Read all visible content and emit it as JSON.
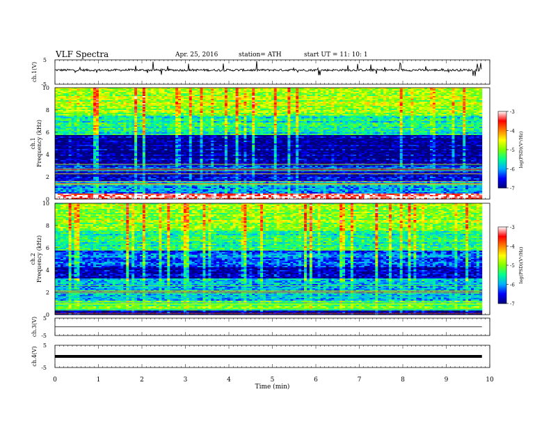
{
  "header": {
    "title": "VLF  Spectra",
    "date": "Apr. 25, 2016",
    "station": "station= ATH",
    "start": "start  UT  =    11: 10: 1"
  },
  "chart_data": [
    {
      "type": "line",
      "panel": "ch1",
      "ylabel": "ch.1(V)",
      "yticks": [
        "5",
        "-5"
      ],
      "ylim": [
        -5,
        5
      ],
      "note": "broadband waveform trace near ~1 V with spikes",
      "series": [
        {
          "level": 0.8,
          "color": "#000000"
        }
      ]
    },
    {
      "type": "heatmap",
      "panel": "ch1-spectrogram",
      "ylabel_top": "ch.1",
      "ylabel": "Frequency  (kHz)",
      "yticks": [
        "0",
        "2",
        "4",
        "6",
        "8",
        "10"
      ],
      "ylim": [
        0,
        10
      ],
      "colorbar": {
        "label": "log(PSD)(V²/Hz)",
        "ticks": [
          "-3",
          "-4",
          "-5",
          "-6",
          "-7"
        ],
        "range": [
          -7,
          -3
        ]
      },
      "bands": [
        {
          "from": 0,
          "to": 0.5,
          "level": -3.2
        },
        {
          "from": 0.5,
          "to": 1.6,
          "level": -6.2
        },
        {
          "from": 1.6,
          "to": 3.3,
          "level": -6.6
        },
        {
          "from": 3.3,
          "to": 5.8,
          "level": -6.9
        },
        {
          "from": 5.8,
          "to": 7.5,
          "level": -5.6
        },
        {
          "from": 7.5,
          "to": 10,
          "level": -4.9
        }
      ]
    },
    {
      "type": "heatmap",
      "panel": "ch2-spectrogram",
      "ylabel_top": "ch.2",
      "ylabel": "Frequency  (kHz)",
      "yticks": [
        "0",
        "2",
        "4",
        "6",
        "8",
        "10"
      ],
      "ylim": [
        0,
        10
      ],
      "colorbar": {
        "label": "log(PSD)(V²/Hz)",
        "ticks": [
          "-3",
          "-4",
          "-5",
          "-6",
          "-7"
        ],
        "range": [
          -7,
          -3
        ]
      },
      "bands": [
        {
          "from": 0,
          "to": 0.4,
          "level": -6.9
        },
        {
          "from": 0.4,
          "to": 1.3,
          "level": -5.2
        },
        {
          "from": 1.3,
          "to": 3.2,
          "level": -6.0
        },
        {
          "from": 3.2,
          "to": 4.2,
          "level": -6.8
        },
        {
          "from": 4.2,
          "to": 5.8,
          "level": -6.2
        },
        {
          "from": 5.8,
          "to": 7.5,
          "level": -5.5
        },
        {
          "from": 7.5,
          "to": 10,
          "level": -4.9
        }
      ]
    },
    {
      "type": "line",
      "panel": "ch3",
      "ylabel": "ch.3(V)",
      "yticks": [
        "5",
        "-5"
      ],
      "ylim": [
        -5,
        5
      ],
      "series": [
        {
          "level": 0,
          "color": "#000000"
        }
      ]
    },
    {
      "type": "line",
      "panel": "ch4",
      "ylabel": "ch.4(V)",
      "yticks": [
        "5",
        "-5"
      ],
      "ylim": [
        -5,
        5
      ],
      "series": [
        {
          "level": 0,
          "color": "#000000"
        }
      ]
    }
  ],
  "xaxis": {
    "label": "Time  (min)",
    "ticks": [
      "0",
      "1",
      "2",
      "3",
      "4",
      "5",
      "6",
      "7",
      "8",
      "9",
      "10"
    ],
    "xlim": [
      0,
      10
    ],
    "data_end": 9.82
  },
  "colors": {
    "scale": [
      "#00007a",
      "#0000ff",
      "#00b0ff",
      "#00ff90",
      "#7fff00",
      "#ffff00",
      "#ff8000",
      "#ff0000",
      "#ffffff"
    ]
  }
}
